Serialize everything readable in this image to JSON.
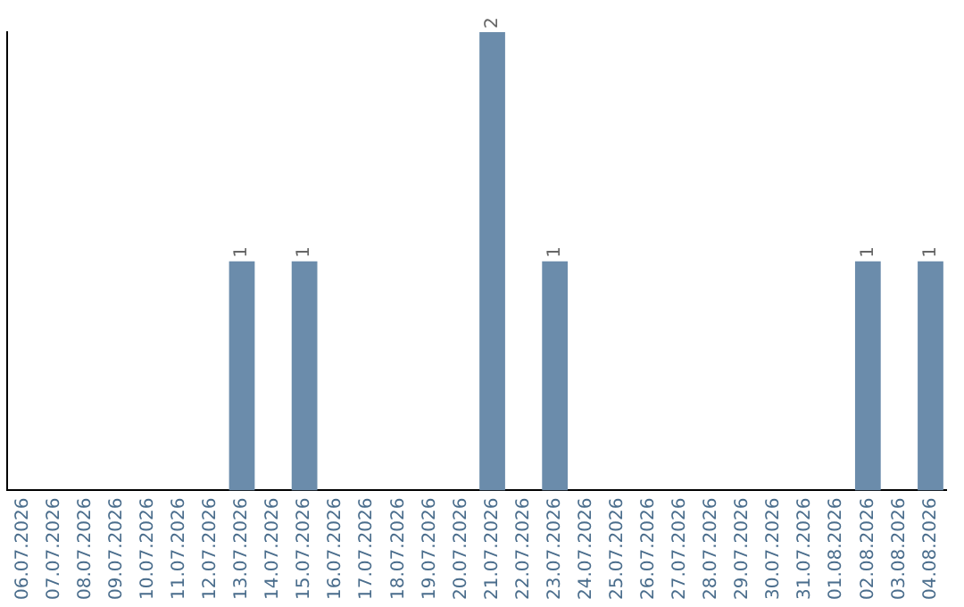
{
  "chart_data": {
    "type": "bar",
    "categories": [
      "06.07.2026",
      "07.07.2026",
      "08.07.2026",
      "09.07.2026",
      "10.07.2026",
      "11.07.2026",
      "12.07.2026",
      "13.07.2026",
      "14.07.2026",
      "15.07.2026",
      "16.07.2026",
      "17.07.2026",
      "18.07.2026",
      "19.07.2026",
      "20.07.2026",
      "21.07.2026",
      "22.07.2026",
      "23.07.2026",
      "24.07.2026",
      "25.07.2026",
      "26.07.2026",
      "27.07.2026",
      "28.07.2026",
      "29.07.2026",
      "30.07.2026",
      "31.07.2026",
      "01.08.2026",
      "02.08.2026",
      "03.08.2026",
      "04.08.2026"
    ],
    "values": [
      0,
      0,
      0,
      0,
      0,
      0,
      0,
      1,
      0,
      1,
      0,
      0,
      0,
      0,
      0,
      2,
      0,
      1,
      0,
      0,
      0,
      0,
      0,
      0,
      0,
      0,
      0,
      1,
      0,
      1
    ],
    "value_labels": [
      null,
      null,
      null,
      null,
      null,
      null,
      null,
      "1",
      null,
      "1",
      null,
      null,
      null,
      null,
      null,
      "2",
      null,
      "1",
      null,
      null,
      null,
      null,
      null,
      null,
      null,
      null,
      null,
      "1",
      null,
      "1"
    ],
    "color": "#6b8cab",
    "grid": false,
    "legend": false,
    "tick_labels": "x"
  }
}
